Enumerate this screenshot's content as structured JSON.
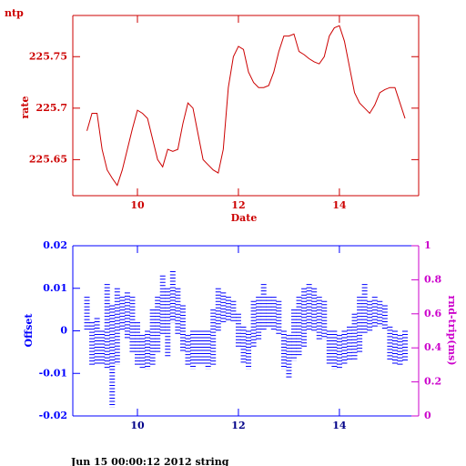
{
  "chart_data": [
    {
      "type": "line",
      "title": "ntp",
      "xlabel": "Date",
      "ylabel": "rate",
      "color": "#cc0000",
      "x": [
        9.0,
        9.1,
        9.2,
        9.3,
        9.4,
        9.5,
        9.6,
        9.7,
        9.8,
        9.9,
        10.0,
        10.1,
        10.2,
        10.3,
        10.4,
        10.5,
        10.6,
        10.7,
        10.8,
        10.9,
        11.0,
        11.1,
        11.2,
        11.3,
        11.4,
        11.5,
        11.6,
        11.7,
        11.8,
        11.9,
        12.0,
        12.1,
        12.2,
        12.3,
        12.4,
        12.5,
        12.6,
        12.7,
        12.8,
        12.9,
        13.0,
        13.1,
        13.2,
        13.3,
        13.4,
        13.5,
        13.6,
        13.7,
        13.8,
        13.9,
        14.0,
        14.1,
        14.2,
        14.3,
        14.4,
        14.5,
        14.6,
        14.7,
        14.8,
        14.9,
        15.0,
        15.1,
        15.2,
        15.3
      ],
      "values": [
        225.678,
        225.695,
        225.695,
        225.66,
        225.64,
        225.632,
        225.625,
        225.64,
        225.66,
        225.68,
        225.698,
        225.695,
        225.69,
        225.67,
        225.65,
        225.643,
        225.66,
        225.658,
        225.66,
        225.685,
        225.705,
        225.7,
        225.675,
        225.65,
        225.645,
        225.64,
        225.637,
        225.66,
        225.72,
        225.75,
        225.76,
        225.757,
        225.735,
        225.725,
        225.72,
        225.72,
        225.722,
        225.735,
        225.755,
        225.77,
        225.77,
        225.772,
        225.755,
        225.752,
        225.748,
        225.745,
        225.743,
        225.75,
        225.77,
        225.778,
        225.78,
        225.765,
        225.74,
        225.715,
        225.705,
        225.7,
        225.695,
        225.703,
        225.715,
        225.718,
        225.72,
        225.72,
        225.705,
        225.69
      ],
      "xlim": [
        8.72,
        15.57
      ],
      "xticks": [
        10,
        12,
        14
      ],
      "ylim": [
        225.615,
        225.79
      ],
      "yticks": [
        225.65,
        225.7,
        225.75
      ]
    },
    {
      "type": "range",
      "ylabel": "Offset",
      "y2label": "rnd-trip(ms)",
      "color": "#0000ff",
      "y2_color": "#cc00cc",
      "x": [
        9.0,
        9.1,
        9.2,
        9.3,
        9.4,
        9.5,
        9.6,
        9.7,
        9.8,
        9.9,
        10.0,
        10.1,
        10.2,
        10.3,
        10.4,
        10.5,
        10.6,
        10.7,
        10.8,
        10.9,
        11.0,
        11.1,
        11.2,
        11.3,
        11.4,
        11.5,
        11.6,
        11.7,
        11.8,
        11.9,
        12.0,
        12.1,
        12.2,
        12.3,
        12.4,
        12.5,
        12.6,
        12.7,
        12.8,
        12.9,
        13.0,
        13.1,
        13.2,
        13.3,
        13.4,
        13.5,
        13.6,
        13.7,
        13.8,
        13.9,
        14.0,
        14.1,
        14.2,
        14.3,
        14.4,
        14.5,
        14.6,
        14.7,
        14.8,
        14.9,
        15.0,
        15.1,
        15.2,
        15.3
      ],
      "high": [
        0.008,
        0.002,
        0.003,
        0.0,
        0.011,
        0.006,
        0.01,
        0.008,
        0.009,
        0.008,
        0.002,
        -0.001,
        0.0,
        0.005,
        0.008,
        0.013,
        0.01,
        0.014,
        0.01,
        0.006,
        -0.001,
        0.0,
        0.0,
        0.0,
        0.0,
        0.005,
        0.01,
        0.009,
        0.008,
        0.007,
        0.004,
        0.001,
        0.0,
        0.007,
        0.008,
        0.011,
        0.008,
        0.008,
        0.007,
        0.0,
        -0.001,
        0.005,
        0.008,
        0.01,
        0.011,
        0.01,
        0.008,
        0.007,
        0.0,
        0.0,
        -0.001,
        0.0,
        0.001,
        0.004,
        0.008,
        0.011,
        0.007,
        0.008,
        0.007,
        0.006,
        0.001,
        0.0,
        -0.001,
        0.0
      ],
      "low": [
        0.0,
        -0.008,
        -0.008,
        -0.008,
        -0.009,
        -0.018,
        -0.008,
        0.0,
        -0.002,
        -0.005,
        -0.008,
        -0.009,
        -0.009,
        -0.008,
        -0.005,
        -0.001,
        -0.006,
        0.002,
        -0.001,
        -0.005,
        -0.008,
        -0.009,
        -0.008,
        -0.008,
        -0.009,
        -0.008,
        0.0,
        0.002,
        0.002,
        0.002,
        -0.004,
        -0.008,
        -0.009,
        -0.004,
        -0.002,
        0.0,
        0.001,
        0.0,
        -0.001,
        -0.009,
        -0.011,
        -0.007,
        -0.006,
        -0.004,
        0.0,
        0.0,
        -0.002,
        -0.002,
        -0.008,
        -0.009,
        -0.009,
        -0.008,
        -0.007,
        -0.007,
        -0.005,
        -0.001,
        0.0,
        0.001,
        0.001,
        0.0,
        -0.007,
        -0.008,
        -0.008,
        -0.007
      ],
      "xlim": [
        8.72,
        15.57
      ],
      "xticks": [
        10,
        12,
        14
      ],
      "ylim": [
        -0.02,
        0.02
      ],
      "yticks": [
        -0.02,
        -0.01,
        0,
        0.01,
        0.02
      ],
      "y2lim": [
        0,
        1
      ],
      "y2ticks": [
        0,
        0.2,
        0.4,
        0.6,
        0.8,
        1
      ]
    }
  ],
  "footer": "Jun 15 00:00:12 2012 string"
}
